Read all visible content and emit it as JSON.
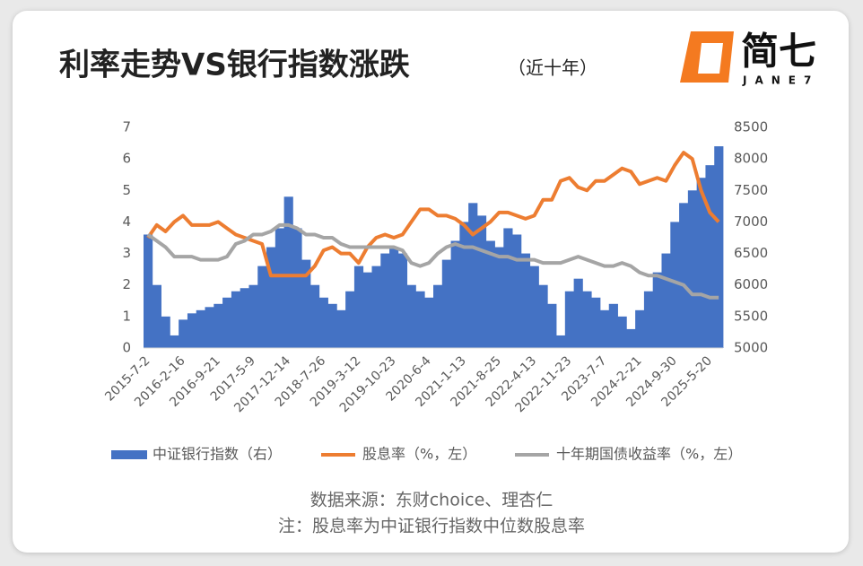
{
  "chart_data": {
    "type": "bar-line",
    "title": "利率走势VS银行指数涨跌",
    "subtitle": "（近十年）",
    "logo": "简七",
    "logo_sub": "JANE7",
    "source": "数据来源：东财choice、理杏仁",
    "note": "注：股息率为中证银行指数中位数股息率",
    "categories": [
      "2015-7-2",
      null,
      null,
      null,
      "2016-2-16",
      null,
      null,
      null,
      "2016-9-21",
      null,
      null,
      null,
      "2017-5-9",
      null,
      null,
      null,
      "2017-12-14",
      null,
      null,
      null,
      "2018-7-26",
      null,
      null,
      null,
      "2019-3-12",
      null,
      null,
      null,
      "2019-10-23",
      null,
      null,
      null,
      "2020-6-4",
      null,
      null,
      null,
      "2021-1-13",
      null,
      null,
      null,
      "2021-8-25",
      null,
      null,
      null,
      "2022-4-13",
      null,
      null,
      null,
      "2022-11-23",
      null,
      null,
      null,
      "2023-7-7",
      null,
      null,
      null,
      "2024-2-21",
      null,
      null,
      null,
      "2024-9-30",
      null,
      null,
      null,
      "2025-5-20",
      null
    ],
    "ylim": [
      0,
      7
    ],
    "yticks": [
      0,
      1,
      2,
      3,
      4,
      5,
      6,
      7
    ],
    "y2lim": [
      5000,
      8500
    ],
    "y2ticks": [
      5000,
      5500,
      6000,
      6500,
      7000,
      7500,
      8000,
      8500
    ],
    "series": [
      {
        "name": "中证银行指数（右）",
        "type": "bar",
        "axis": "y2",
        "color": "#4472c4",
        "values": [
          6800,
          6000,
          5500,
          5200,
          5450,
          5550,
          5600,
          5650,
          5700,
          5800,
          5900,
          5950,
          6000,
          6300,
          6600,
          6900,
          7400,
          6900,
          6400,
          6000,
          5800,
          5700,
          5600,
          5900,
          6300,
          6200,
          6300,
          6500,
          6600,
          6500,
          6000,
          5900,
          5800,
          6000,
          6400,
          6700,
          7000,
          7300,
          7100,
          6700,
          6600,
          6900,
          6800,
          6500,
          6300,
          6000,
          5700,
          5200,
          5900,
          6100,
          5900,
          5800,
          5600,
          5700,
          5500,
          5300,
          5600,
          5900,
          6200,
          6500,
          7000,
          7300,
          7500,
          7700,
          7900,
          8200
        ]
      },
      {
        "name": "股息率（%，左）",
        "type": "line",
        "color": "#ed7d31",
        "values": [
          3.5,
          3.9,
          3.7,
          4.0,
          4.2,
          3.9,
          3.9,
          3.9,
          4.0,
          3.8,
          3.6,
          3.5,
          3.4,
          3.3,
          2.3,
          2.3,
          2.3,
          2.3,
          2.3,
          2.6,
          3.1,
          3.2,
          3.0,
          3.0,
          2.7,
          3.2,
          3.5,
          3.6,
          3.5,
          3.6,
          4.0,
          4.4,
          4.4,
          4.2,
          4.2,
          4.1,
          3.9,
          3.6,
          3.8,
          4.0,
          4.3,
          4.3,
          4.2,
          4.1,
          4.2,
          4.7,
          4.7,
          5.3,
          5.4,
          5.1,
          5.0,
          5.3,
          5.3,
          5.5,
          5.7,
          5.6,
          5.2,
          5.3,
          5.4,
          5.3,
          5.8,
          6.2,
          6.0,
          5.0,
          4.3,
          4.0
        ]
      },
      {
        "name": "十年期国债收益率（%，左）",
        "type": "line",
        "color": "#a5a5a5",
        "values": [
          3.6,
          3.4,
          3.2,
          2.9,
          2.9,
          2.9,
          2.8,
          2.8,
          2.8,
          2.9,
          3.3,
          3.4,
          3.6,
          3.6,
          3.7,
          3.9,
          3.9,
          3.8,
          3.6,
          3.6,
          3.5,
          3.5,
          3.3,
          3.2,
          3.2,
          3.2,
          3.2,
          3.2,
          3.2,
          3.1,
          2.7,
          2.6,
          2.7,
          3.0,
          3.2,
          3.3,
          3.2,
          3.2,
          3.1,
          3.0,
          2.9,
          2.9,
          2.8,
          2.8,
          2.8,
          2.7,
          2.7,
          2.7,
          2.8,
          2.9,
          2.8,
          2.7,
          2.6,
          2.6,
          2.7,
          2.6,
          2.4,
          2.3,
          2.3,
          2.2,
          2.1,
          2.0,
          1.7,
          1.7,
          1.6,
          1.6
        ]
      }
    ]
  }
}
